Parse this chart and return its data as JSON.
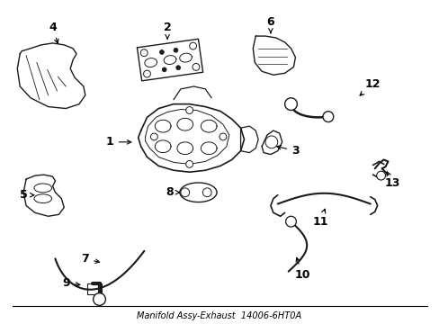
{
  "title": "Manifold Assy-Exhaust",
  "part_number": "14006-6HT0A",
  "background_color": "#ffffff",
  "line_color": "#1a1a1a",
  "line_width": 1.0,
  "label_fontsize": 8,
  "figsize": [
    4.89,
    3.6
  ],
  "dpi": 100
}
